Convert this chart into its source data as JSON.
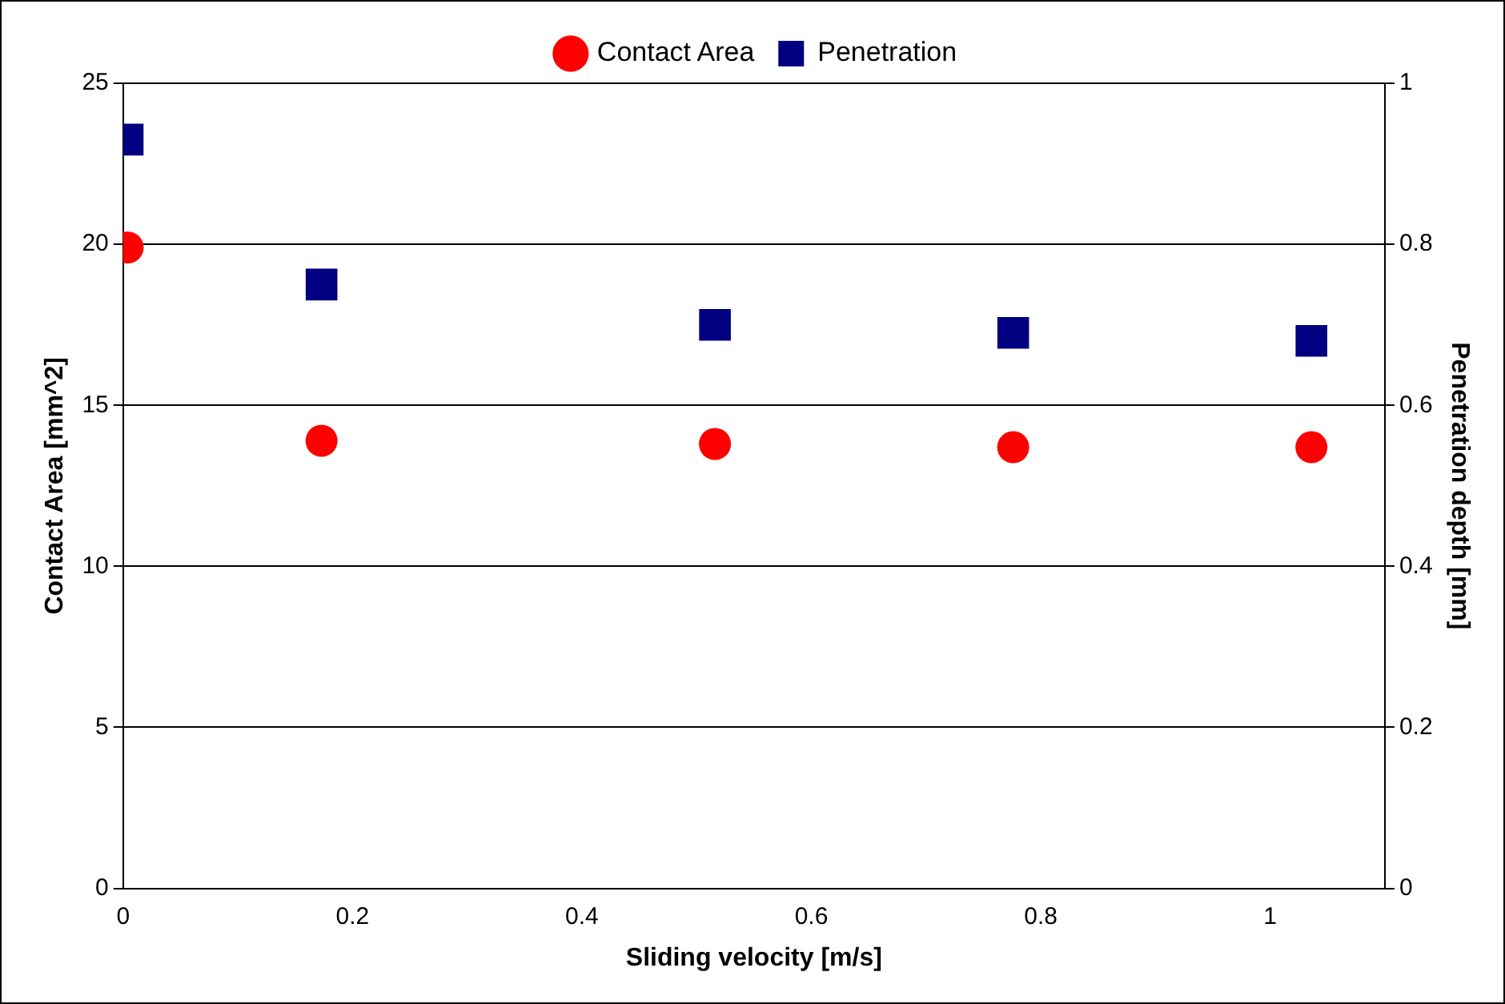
{
  "chart_data": {
    "type": "scatter",
    "xlabel": "Sliding velocity [m/s]",
    "ylabel": "Contact Area [mm^2]",
    "y2label": "Penetration depth [mm]",
    "xlim": [
      0,
      1.1
    ],
    "xticks": [
      0,
      0.2,
      0.4,
      0.6,
      0.8,
      1
    ],
    "ylim": [
      0,
      25
    ],
    "yticks": [
      0,
      5,
      10,
      15,
      20,
      25
    ],
    "y2lim": [
      0,
      1
    ],
    "y2ticks": [
      0,
      0.2,
      0.4,
      0.6,
      0.8,
      1
    ],
    "grid": "y",
    "legend": "top",
    "series": [
      {
        "name": "Contact Area",
        "color": "#ff0000",
        "marker": "circle",
        "x": [
          0.004,
          0.173,
          0.516,
          0.776,
          1.036
        ],
        "values": [
          19.9,
          13.9,
          13.8,
          13.7,
          13.7
        ]
      },
      {
        "name": "Penetration",
        "color": "#000080",
        "marker": "square",
        "axis": "y2",
        "x": [
          0.004,
          0.173,
          0.516,
          0.776,
          1.036
        ],
        "values": [
          0.93,
          0.75,
          0.7,
          0.69,
          0.68
        ]
      }
    ]
  }
}
